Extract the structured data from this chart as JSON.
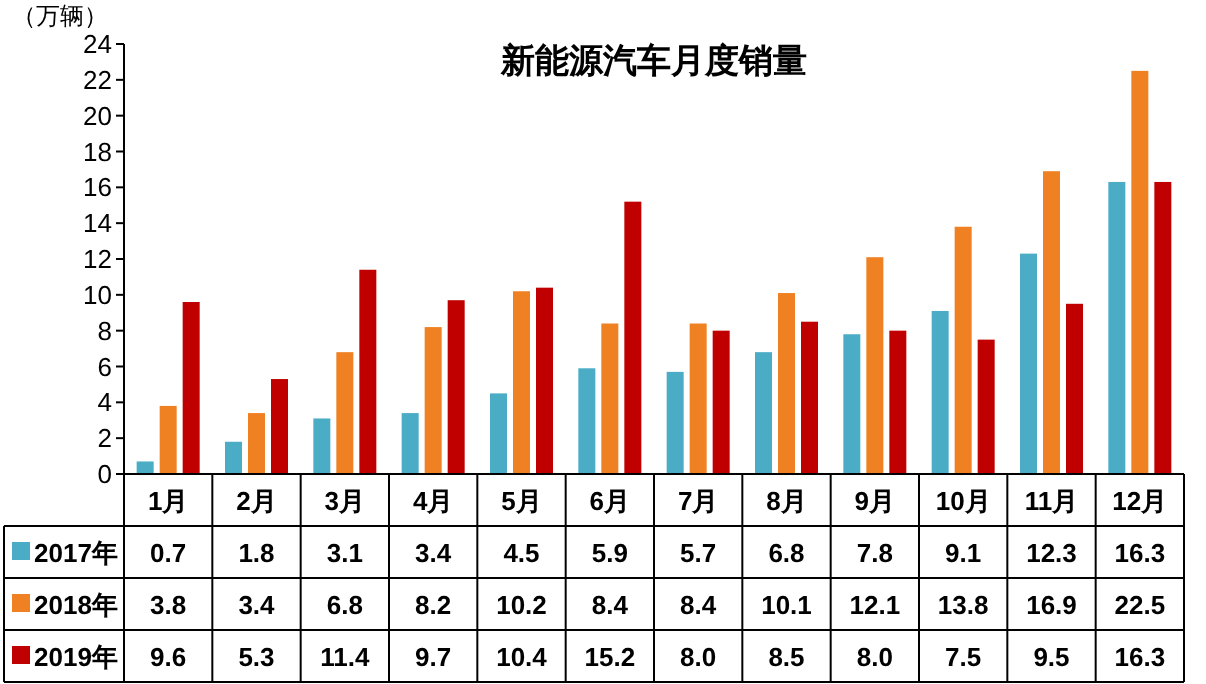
{
  "chart_data": {
    "type": "bar",
    "title": "新能源汽车月度销量",
    "ylabel": "（万辆）",
    "categories": [
      "1月",
      "2月",
      "3月",
      "4月",
      "5月",
      "6月",
      "7月",
      "8月",
      "9月",
      "10月",
      "11月",
      "12月"
    ],
    "series": [
      {
        "name": "2017年",
        "color": "#4bacc6",
        "values": [
          0.7,
          1.8,
          3.1,
          3.4,
          4.5,
          5.9,
          5.7,
          6.8,
          7.8,
          9.1,
          12.3,
          16.3
        ],
        "value_labels": [
          "0.7",
          "1.8",
          "3.1",
          "3.4",
          "4.5",
          "5.9",
          "5.7",
          "6.8",
          "7.8",
          "9.1",
          "12.3",
          "16.3"
        ]
      },
      {
        "name": "2018年",
        "color": "#f08122",
        "values": [
          3.8,
          3.4,
          6.8,
          8.2,
          10.2,
          8.4,
          8.4,
          10.1,
          12.1,
          13.8,
          16.9,
          22.5
        ],
        "value_labels": [
          "3.8",
          "3.4",
          "6.8",
          "8.2",
          "10.2",
          "8.4",
          "8.4",
          "10.1",
          "12.1",
          "13.8",
          "16.9",
          "22.5"
        ]
      },
      {
        "name": "2019年",
        "color": "#c00000",
        "values": [
          9.6,
          5.3,
          11.4,
          9.7,
          10.4,
          15.2,
          8.0,
          8.5,
          8.0,
          7.5,
          9.5,
          16.3
        ],
        "value_labels": [
          "9.6",
          "5.3",
          "11.4",
          "9.7",
          "10.4",
          "15.2",
          "8.0",
          "8.5",
          "8.0",
          "7.5",
          "9.5",
          "16.3"
        ]
      }
    ],
    "ylim": [
      0,
      24
    ],
    "yticks": [
      0,
      2,
      4,
      6,
      8,
      10,
      12,
      14,
      16,
      18,
      20,
      22,
      24
    ],
    "legend": "bottom"
  }
}
